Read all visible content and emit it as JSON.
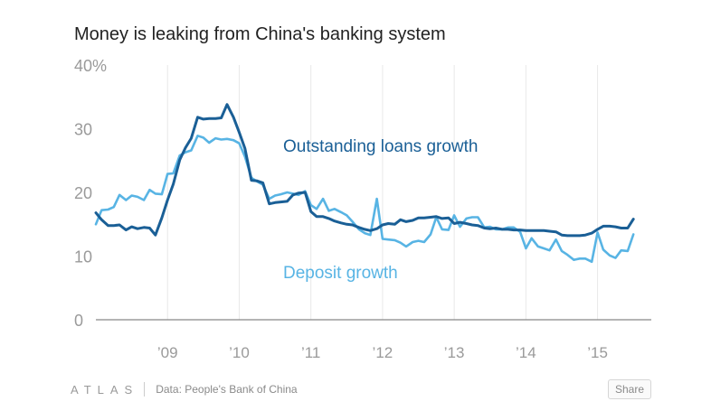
{
  "chart_data": {
    "type": "line",
    "title": "Money is leaking from China's banking system",
    "ylim": [
      0,
      40
    ],
    "yticks": [
      {
        "value": 0,
        "label": "0"
      },
      {
        "value": 10,
        "label": "10"
      },
      {
        "value": 20,
        "label": "20"
      },
      {
        "value": 30,
        "label": "30"
      },
      {
        "value": 40,
        "label": "40%"
      }
    ],
    "xlim": [
      2008.0,
      2015.75
    ],
    "xticks": [
      {
        "value": 2009,
        "label": "’09"
      },
      {
        "value": 2010,
        "label": "’10"
      },
      {
        "value": 2011,
        "label": "’11"
      },
      {
        "value": 2012,
        "label": "’12"
      },
      {
        "value": 2013,
        "label": "’13"
      },
      {
        "value": 2014,
        "label": "’14"
      },
      {
        "value": 2015,
        "label": "’15"
      }
    ],
    "grid": "vertical",
    "series": [
      {
        "name": "Outstanding loans growth",
        "color": "#1a5f96",
        "points": [
          [
            2008.0,
            16.8
          ],
          [
            2008.08,
            15.7
          ],
          [
            2008.17,
            14.8
          ],
          [
            2008.25,
            14.8
          ],
          [
            2008.33,
            14.9
          ],
          [
            2008.42,
            14.1
          ],
          [
            2008.5,
            14.6
          ],
          [
            2008.58,
            14.3
          ],
          [
            2008.67,
            14.5
          ],
          [
            2008.75,
            14.4
          ],
          [
            2008.83,
            13.3
          ],
          [
            2008.92,
            16.0
          ],
          [
            2009.0,
            18.8
          ],
          [
            2009.08,
            21.3
          ],
          [
            2009.17,
            25.1
          ],
          [
            2009.25,
            27.0
          ],
          [
            2009.33,
            28.5
          ],
          [
            2009.42,
            31.8
          ],
          [
            2009.5,
            31.5
          ],
          [
            2009.58,
            31.6
          ],
          [
            2009.67,
            31.6
          ],
          [
            2009.75,
            31.7
          ],
          [
            2009.83,
            33.8
          ],
          [
            2009.92,
            31.8
          ],
          [
            2010.0,
            29.4
          ],
          [
            2010.08,
            26.9
          ],
          [
            2010.17,
            21.9
          ],
          [
            2010.25,
            21.8
          ],
          [
            2010.33,
            21.5
          ],
          [
            2010.42,
            18.2
          ],
          [
            2010.5,
            18.4
          ],
          [
            2010.58,
            18.5
          ],
          [
            2010.67,
            18.6
          ],
          [
            2010.75,
            19.6
          ],
          [
            2010.83,
            19.9
          ],
          [
            2010.92,
            20.0
          ],
          [
            2011.0,
            17.0
          ],
          [
            2011.08,
            16.2
          ],
          [
            2011.17,
            16.2
          ],
          [
            2011.25,
            15.9
          ],
          [
            2011.33,
            15.5
          ],
          [
            2011.42,
            15.2
          ],
          [
            2011.5,
            15.0
          ],
          [
            2011.58,
            14.9
          ],
          [
            2011.67,
            14.5
          ],
          [
            2011.75,
            14.2
          ],
          [
            2011.83,
            14.0
          ],
          [
            2011.92,
            14.3
          ],
          [
            2012.0,
            14.9
          ],
          [
            2012.08,
            15.1
          ],
          [
            2012.17,
            15.0
          ],
          [
            2012.25,
            15.7
          ],
          [
            2012.33,
            15.4
          ],
          [
            2012.42,
            15.6
          ],
          [
            2012.5,
            16.0
          ],
          [
            2012.58,
            16.0
          ],
          [
            2012.67,
            16.1
          ],
          [
            2012.75,
            16.2
          ],
          [
            2012.83,
            15.9
          ],
          [
            2012.92,
            16.0
          ],
          [
            2013.0,
            15.1
          ],
          [
            2013.08,
            15.3
          ],
          [
            2013.17,
            15.1
          ],
          [
            2013.25,
            14.9
          ],
          [
            2013.33,
            14.8
          ],
          [
            2013.42,
            14.4
          ],
          [
            2013.5,
            14.3
          ],
          [
            2013.58,
            14.4
          ],
          [
            2013.67,
            14.2
          ],
          [
            2013.75,
            14.2
          ],
          [
            2013.83,
            14.1
          ],
          [
            2013.92,
            14.1
          ],
          [
            2014.0,
            14.0
          ],
          [
            2014.08,
            14.0
          ],
          [
            2014.17,
            14.0
          ],
          [
            2014.25,
            14.0
          ],
          [
            2014.33,
            13.9
          ],
          [
            2014.42,
            13.8
          ],
          [
            2014.5,
            13.3
          ],
          [
            2014.58,
            13.2
          ],
          [
            2014.67,
            13.2
          ],
          [
            2014.75,
            13.2
          ],
          [
            2014.83,
            13.3
          ],
          [
            2014.92,
            13.6
          ],
          [
            2015.0,
            14.2
          ],
          [
            2015.08,
            14.7
          ],
          [
            2015.17,
            14.7
          ],
          [
            2015.25,
            14.6
          ],
          [
            2015.33,
            14.4
          ],
          [
            2015.42,
            14.4
          ],
          [
            2015.5,
            15.8
          ]
        ]
      },
      {
        "name": "Deposit growth",
        "color": "#58b4e4",
        "points": [
          [
            2008.0,
            15.0
          ],
          [
            2008.08,
            17.2
          ],
          [
            2008.17,
            17.3
          ],
          [
            2008.25,
            17.7
          ],
          [
            2008.33,
            19.6
          ],
          [
            2008.42,
            18.8
          ],
          [
            2008.5,
            19.5
          ],
          [
            2008.58,
            19.3
          ],
          [
            2008.67,
            18.8
          ],
          [
            2008.75,
            20.4
          ],
          [
            2008.83,
            19.8
          ],
          [
            2008.92,
            19.7
          ],
          [
            2009.0,
            22.9
          ],
          [
            2009.08,
            23.0
          ],
          [
            2009.17,
            25.8
          ],
          [
            2009.25,
            26.3
          ],
          [
            2009.33,
            26.6
          ],
          [
            2009.42,
            28.9
          ],
          [
            2009.5,
            28.6
          ],
          [
            2009.58,
            27.8
          ],
          [
            2009.67,
            28.5
          ],
          [
            2009.75,
            28.3
          ],
          [
            2009.83,
            28.4
          ],
          [
            2009.92,
            28.2
          ],
          [
            2010.0,
            27.7
          ],
          [
            2010.08,
            25.6
          ],
          [
            2010.17,
            22.3
          ],
          [
            2010.25,
            21.7
          ],
          [
            2010.33,
            21.2
          ],
          [
            2010.42,
            19.0
          ],
          [
            2010.5,
            19.5
          ],
          [
            2010.58,
            19.7
          ],
          [
            2010.67,
            20.0
          ],
          [
            2010.75,
            19.8
          ],
          [
            2010.83,
            19.6
          ],
          [
            2010.92,
            20.2
          ],
          [
            2011.0,
            18.0
          ],
          [
            2011.08,
            17.4
          ],
          [
            2011.17,
            19.0
          ],
          [
            2011.25,
            17.1
          ],
          [
            2011.33,
            17.4
          ],
          [
            2011.42,
            16.9
          ],
          [
            2011.5,
            16.4
          ],
          [
            2011.58,
            15.4
          ],
          [
            2011.67,
            14.2
          ],
          [
            2011.75,
            13.6
          ],
          [
            2011.83,
            13.3
          ],
          [
            2011.92,
            19.0
          ],
          [
            2012.0,
            12.7
          ],
          [
            2012.08,
            12.6
          ],
          [
            2012.17,
            12.5
          ],
          [
            2012.25,
            12.1
          ],
          [
            2012.33,
            11.5
          ],
          [
            2012.42,
            12.2
          ],
          [
            2012.5,
            12.4
          ],
          [
            2012.58,
            12.2
          ],
          [
            2012.67,
            13.4
          ],
          [
            2012.75,
            16.1
          ],
          [
            2012.83,
            14.2
          ],
          [
            2012.92,
            14.1
          ],
          [
            2013.0,
            16.4
          ],
          [
            2013.08,
            14.6
          ],
          [
            2013.17,
            15.9
          ],
          [
            2013.25,
            16.1
          ],
          [
            2013.33,
            16.1
          ],
          [
            2013.42,
            14.5
          ],
          [
            2013.5,
            14.6
          ],
          [
            2013.58,
            14.2
          ],
          [
            2013.67,
            14.2
          ],
          [
            2013.75,
            14.5
          ],
          [
            2013.83,
            14.5
          ],
          [
            2013.92,
            13.8
          ],
          [
            2014.0,
            11.2
          ],
          [
            2014.08,
            12.8
          ],
          [
            2014.17,
            11.5
          ],
          [
            2014.25,
            11.2
          ],
          [
            2014.33,
            10.9
          ],
          [
            2014.42,
            12.6
          ],
          [
            2014.5,
            10.8
          ],
          [
            2014.58,
            10.2
          ],
          [
            2014.67,
            9.4
          ],
          [
            2014.75,
            9.6
          ],
          [
            2014.83,
            9.6
          ],
          [
            2014.92,
            9.1
          ],
          [
            2015.0,
            13.7
          ],
          [
            2015.08,
            11.0
          ],
          [
            2015.17,
            10.1
          ],
          [
            2015.25,
            9.7
          ],
          [
            2015.33,
            10.9
          ],
          [
            2015.42,
            10.8
          ],
          [
            2015.5,
            13.4
          ]
        ]
      }
    ]
  },
  "footer": {
    "logo": "ATLAS",
    "source": "Data: People's Bank of China",
    "share_label": "Share"
  }
}
